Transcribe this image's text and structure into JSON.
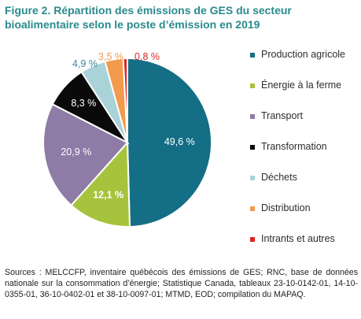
{
  "title": "Figure 2. Répartition des émissions de GES du secteur bioalimentaire selon le poste d’émission en 2019",
  "source": "Sources : MELCCFP, inventaire québécois des émissions de GES; RNC, base de données nationale sur la consommation d’énergie; Statistique Canada, tableaux 23-10-0142-01, 14-10-0355-01, 36-10-0402-01 et 38-10-0097-01; MTMD, EOD; compilation du MAPAQ.",
  "chart_data": {
    "type": "pie",
    "start": "12 o'clock",
    "direction": "clockwise",
    "legend_position": "right",
    "slices": [
      {
        "label": "Production agricole",
        "value": 49.6,
        "value_label": "49,6 %",
        "color": "#136e86",
        "label_color": "#ffffff",
        "label_placement": "inside"
      },
      {
        "label": "Énergie à la ferme",
        "value": 12.1,
        "value_label": "12,1 %",
        "color": "#a6c33d",
        "label_color": "#ffffff",
        "label_placement": "inside"
      },
      {
        "label": "Transport",
        "value": 20.9,
        "value_label": "20,9 %",
        "color": "#8e7ba6",
        "label_color": "#ffffff",
        "label_placement": "inside"
      },
      {
        "label": "Transformation",
        "value": 8.3,
        "value_label": "8,3 %",
        "color": "#0a0a0a",
        "label_color": "#ffffff",
        "label_placement": "inside"
      },
      {
        "label": "Déchets",
        "value": 4.9,
        "value_label": "4,9 %",
        "color": "#a9d3d8",
        "label_color": "#3c8a9a",
        "label_placement": "outside"
      },
      {
        "label": "Distribution",
        "value": 3.5,
        "value_label": "3,5 %",
        "color": "#f29a4d",
        "label_color": "#f29a4d",
        "label_placement": "outside"
      },
      {
        "label": "Intrants et autres",
        "value": 0.8,
        "value_label": "0,8 %",
        "color": "#e02424",
        "label_color": "#e02424",
        "label_placement": "outside"
      }
    ]
  }
}
